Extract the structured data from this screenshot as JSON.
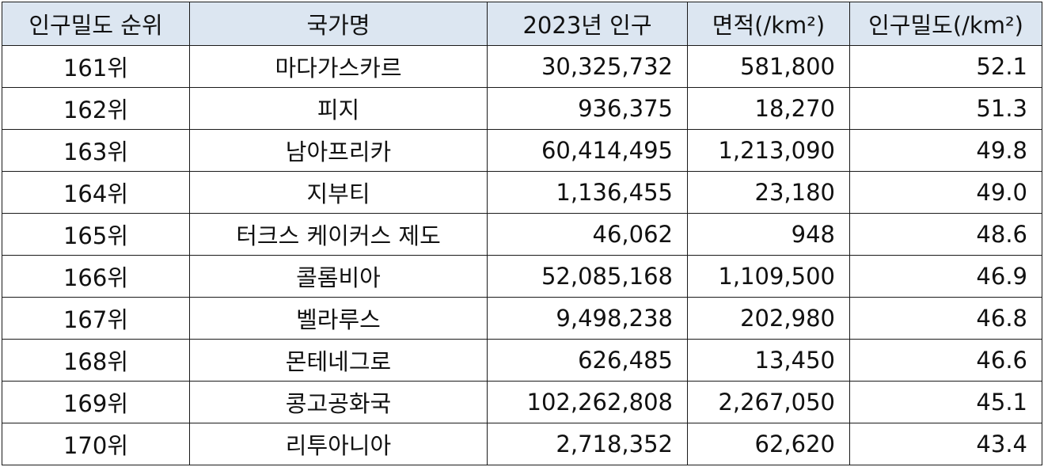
{
  "table": {
    "headers": {
      "rank": "인구밀도 순위",
      "country": "국가명",
      "population": "2023년 인구",
      "area": "면적(/km²)",
      "density": "인구밀도(/km²)"
    },
    "rows": [
      {
        "rank": "161위",
        "country": "마다가스카르",
        "population": "30,325,732",
        "area": "581,800",
        "density": "52.1"
      },
      {
        "rank": "162위",
        "country": "피지",
        "population": "936,375",
        "area": "18,270",
        "density": "51.3"
      },
      {
        "rank": "163위",
        "country": "남아프리카",
        "population": "60,414,495",
        "area": "1,213,090",
        "density": "49.8"
      },
      {
        "rank": "164위",
        "country": "지부티",
        "population": "1,136,455",
        "area": "23,180",
        "density": "49.0"
      },
      {
        "rank": "165위",
        "country": "터크스 케이커스 제도",
        "population": "46,062",
        "area": "948",
        "density": "48.6"
      },
      {
        "rank": "166위",
        "country": "콜롬비아",
        "population": "52,085,168",
        "area": "1,109,500",
        "density": "46.9"
      },
      {
        "rank": "167위",
        "country": "벨라루스",
        "population": "9,498,238",
        "area": "202,980",
        "density": "46.8"
      },
      {
        "rank": "168위",
        "country": "몬테네그로",
        "population": "626,485",
        "area": "13,450",
        "density": "46.6"
      },
      {
        "rank": "169위",
        "country": "콩고공화국",
        "population": "102,262,808",
        "area": "2,267,050",
        "density": "45.1"
      },
      {
        "rank": "170위",
        "country": "리투아니아",
        "population": "2,718,352",
        "area": "62,620",
        "density": "43.4"
      }
    ]
  }
}
